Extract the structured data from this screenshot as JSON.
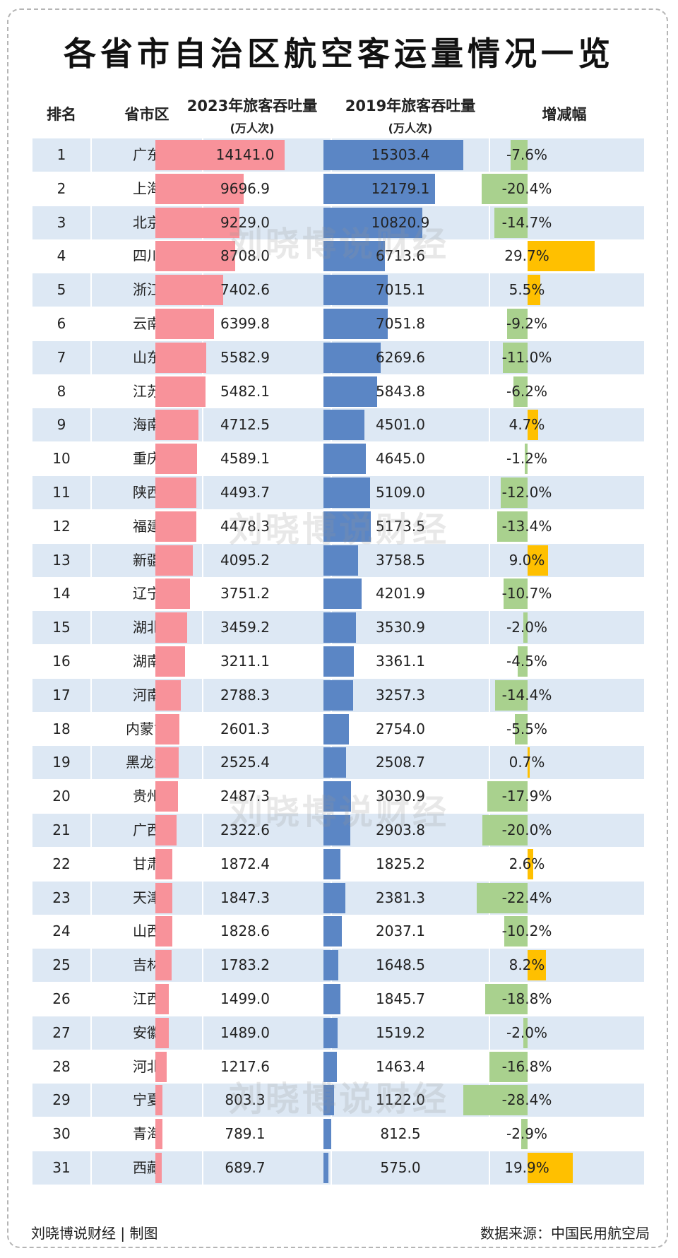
{
  "title": "各省市自治区航空客运量情况一览",
  "headers": {
    "rank": "排名",
    "province": "省市区",
    "col2023": "2023年旅客吞吐量",
    "col2019": "2019年旅客吞吐量",
    "unit": "(万人次)",
    "change": "增减幅"
  },
  "watermark": "刘晓博说财经",
  "footer": {
    "left": "刘晓博说财经 | 制图",
    "right": "数据来源：中国民用航空局"
  },
  "colors": {
    "bar_2023": "#f8929a",
    "bar_2019": "#5b86c5",
    "change_negative": "#a9d18e",
    "change_positive": "#ffc000",
    "row_shade": "#dde8f4"
  },
  "chart_data": {
    "type": "table",
    "columns": [
      "排名",
      "省市区",
      "2023年旅客吞吐量(万人次)",
      "2019年旅客吞吐量(万人次)",
      "增减幅"
    ],
    "rows": [
      {
        "rank": "1",
        "province": "广东",
        "v2023": 14141.0,
        "v2023_text": "14141.0",
        "v2019": 15303.4,
        "v2019_text": "15303.4",
        "change": -7.6,
        "change_text": "-7.6%"
      },
      {
        "rank": "2",
        "province": "上海",
        "v2023": 9696.9,
        "v2023_text": "9696.9",
        "v2019": 12179.1,
        "v2019_text": "12179.1",
        "change": -20.4,
        "change_text": "-20.4%"
      },
      {
        "rank": "3",
        "province": "北京",
        "v2023": 9229.0,
        "v2023_text": "9229.0",
        "v2019": 10820.9,
        "v2019_text": "10820.9",
        "change": -14.7,
        "change_text": "-14.7%"
      },
      {
        "rank": "4",
        "province": "四川",
        "v2023": 8708.0,
        "v2023_text": "8708.0",
        "v2019": 6713.6,
        "v2019_text": "6713.6",
        "change": 29.7,
        "change_text": "29.7%"
      },
      {
        "rank": "5",
        "province": "浙江",
        "v2023": 7402.6,
        "v2023_text": "7402.6",
        "v2019": 7015.1,
        "v2019_text": "7015.1",
        "change": 5.5,
        "change_text": "5.5%"
      },
      {
        "rank": "6",
        "province": "云南",
        "v2023": 6399.8,
        "v2023_text": "6399.8",
        "v2019": 7051.8,
        "v2019_text": "7051.8",
        "change": -9.2,
        "change_text": "-9.2%"
      },
      {
        "rank": "7",
        "province": "山东",
        "v2023": 5582.9,
        "v2023_text": "5582.9",
        "v2019": 6269.6,
        "v2019_text": "6269.6",
        "change": -11.0,
        "change_text": "-11.0%"
      },
      {
        "rank": "8",
        "province": "江苏",
        "v2023": 5482.1,
        "v2023_text": "5482.1",
        "v2019": 5843.8,
        "v2019_text": "5843.8",
        "change": -6.2,
        "change_text": "-6.2%"
      },
      {
        "rank": "9",
        "province": "海南",
        "v2023": 4712.5,
        "v2023_text": "4712.5",
        "v2019": 4501.0,
        "v2019_text": "4501.0",
        "change": 4.7,
        "change_text": "4.7%"
      },
      {
        "rank": "10",
        "province": "重庆",
        "v2023": 4589.1,
        "v2023_text": "4589.1",
        "v2019": 4645.0,
        "v2019_text": "4645.0",
        "change": -1.2,
        "change_text": "-1.2%"
      },
      {
        "rank": "11",
        "province": "陕西",
        "v2023": 4493.7,
        "v2023_text": "4493.7",
        "v2019": 5109.0,
        "v2019_text": "5109.0",
        "change": -12.0,
        "change_text": "-12.0%"
      },
      {
        "rank": "12",
        "province": "福建",
        "v2023": 4478.3,
        "v2023_text": "4478.3",
        "v2019": 5173.5,
        "v2019_text": "5173.5",
        "change": -13.4,
        "change_text": "-13.4%"
      },
      {
        "rank": "13",
        "province": "新疆",
        "v2023": 4095.2,
        "v2023_text": "4095.2",
        "v2019": 3758.5,
        "v2019_text": "3758.5",
        "change": 9.0,
        "change_text": "9.0%"
      },
      {
        "rank": "14",
        "province": "辽宁",
        "v2023": 3751.2,
        "v2023_text": "3751.2",
        "v2019": 4201.9,
        "v2019_text": "4201.9",
        "change": -10.7,
        "change_text": "-10.7%"
      },
      {
        "rank": "15",
        "province": "湖北",
        "v2023": 3459.2,
        "v2023_text": "3459.2",
        "v2019": 3530.9,
        "v2019_text": "3530.9",
        "change": -2.0,
        "change_text": "-2.0%"
      },
      {
        "rank": "16",
        "province": "湖南",
        "v2023": 3211.1,
        "v2023_text": "3211.1",
        "v2019": 3361.1,
        "v2019_text": "3361.1",
        "change": -4.5,
        "change_text": "-4.5%"
      },
      {
        "rank": "17",
        "province": "河南",
        "v2023": 2788.3,
        "v2023_text": "2788.3",
        "v2019": 3257.3,
        "v2019_text": "3257.3",
        "change": -14.4,
        "change_text": "-14.4%"
      },
      {
        "rank": "18",
        "province": "内蒙古",
        "v2023": 2601.3,
        "v2023_text": "2601.3",
        "v2019": 2754.0,
        "v2019_text": "2754.0",
        "change": -5.5,
        "change_text": "-5.5%"
      },
      {
        "rank": "19",
        "province": "黑龙江",
        "v2023": 2525.4,
        "v2023_text": "2525.4",
        "v2019": 2508.7,
        "v2019_text": "2508.7",
        "change": 0.7,
        "change_text": "0.7%"
      },
      {
        "rank": "20",
        "province": "贵州",
        "v2023": 2487.3,
        "v2023_text": "2487.3",
        "v2019": 3030.9,
        "v2019_text": "3030.9",
        "change": -17.9,
        "change_text": "-17.9%"
      },
      {
        "rank": "21",
        "province": "广西",
        "v2023": 2322.6,
        "v2023_text": "2322.6",
        "v2019": 2903.8,
        "v2019_text": "2903.8",
        "change": -20.0,
        "change_text": "-20.0%"
      },
      {
        "rank": "22",
        "province": "甘肃",
        "v2023": 1872.4,
        "v2023_text": "1872.4",
        "v2019": 1825.2,
        "v2019_text": "1825.2",
        "change": 2.6,
        "change_text": "2.6%"
      },
      {
        "rank": "23",
        "province": "天津",
        "v2023": 1847.3,
        "v2023_text": "1847.3",
        "v2019": 2381.3,
        "v2019_text": "2381.3",
        "change": -22.4,
        "change_text": "-22.4%"
      },
      {
        "rank": "24",
        "province": "山西",
        "v2023": 1828.6,
        "v2023_text": "1828.6",
        "v2019": 2037.1,
        "v2019_text": "2037.1",
        "change": -10.2,
        "change_text": "-10.2%"
      },
      {
        "rank": "25",
        "province": "吉林",
        "v2023": 1783.2,
        "v2023_text": "1783.2",
        "v2019": 1648.5,
        "v2019_text": "1648.5",
        "change": 8.2,
        "change_text": "8.2%"
      },
      {
        "rank": "26",
        "province": "江西",
        "v2023": 1499.0,
        "v2023_text": "1499.0",
        "v2019": 1845.7,
        "v2019_text": "1845.7",
        "change": -18.8,
        "change_text": "-18.8%"
      },
      {
        "rank": "27",
        "province": "安徽",
        "v2023": 1489.0,
        "v2023_text": "1489.0",
        "v2019": 1519.2,
        "v2019_text": "1519.2",
        "change": -2.0,
        "change_text": "-2.0%"
      },
      {
        "rank": "28",
        "province": "河北",
        "v2023": 1217.6,
        "v2023_text": "1217.6",
        "v2019": 1463.4,
        "v2019_text": "1463.4",
        "change": -16.8,
        "change_text": "-16.8%"
      },
      {
        "rank": "29",
        "province": "宁夏",
        "v2023": 803.3,
        "v2023_text": "803.3",
        "v2019": 1122.0,
        "v2019_text": "1122.0",
        "change": -28.4,
        "change_text": "-28.4%"
      },
      {
        "rank": "30",
        "province": "青海",
        "v2023": 789.1,
        "v2023_text": "789.1",
        "v2019": 812.5,
        "v2019_text": "812.5",
        "change": -2.9,
        "change_text": "-2.9%"
      },
      {
        "rank": "31",
        "province": "西藏",
        "v2023": 689.7,
        "v2023_text": "689.7",
        "v2019": 575.0,
        "v2019_text": "575.0",
        "change": 19.9,
        "change_text": "19.9%"
      }
    ]
  }
}
